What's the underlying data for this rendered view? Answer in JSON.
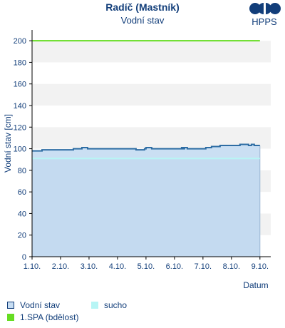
{
  "header": {
    "title": "Radíč (Mastník)",
    "subtitle": "Vodní stav",
    "logo_text": "HPPS"
  },
  "colors": {
    "axis_text": "#123e7a",
    "band": "#f2f2f2",
    "water_line": "#2e6da4",
    "water_fill": "#c7ddf2",
    "sucho": "#b7f5f5",
    "spa": "#66dd22"
  },
  "chart_data": {
    "type": "area",
    "title": "Radíč (Mastník)",
    "subtitle": "Vodní stav",
    "xlabel": "Datum",
    "ylabel": "Vodní stav [cm]",
    "ylim": [
      0,
      210
    ],
    "xlim": [
      0,
      8.38
    ],
    "yticks": [
      0,
      20,
      40,
      60,
      80,
      100,
      120,
      140,
      160,
      180,
      200
    ],
    "xticks": [
      "1.10.",
      "2.10.",
      "3.10.",
      "4.10.",
      "5.10.",
      "6.10.",
      "7.10.",
      "8.10.",
      "9.10."
    ],
    "grid": "horizontal bands",
    "series": [
      {
        "name": "Vodní stav",
        "step_points": [
          [
            0.0,
            98
          ],
          [
            0.35,
            99
          ],
          [
            1.45,
            100
          ],
          [
            1.75,
            101
          ],
          [
            1.95,
            100
          ],
          [
            3.2,
            100
          ],
          [
            3.65,
            99
          ],
          [
            3.95,
            100
          ],
          [
            4.0,
            101
          ],
          [
            4.2,
            100
          ],
          [
            5.25,
            101
          ],
          [
            5.3,
            100
          ],
          [
            5.35,
            101
          ],
          [
            5.45,
            100
          ],
          [
            6.1,
            101
          ],
          [
            6.3,
            102
          ],
          [
            6.6,
            103
          ],
          [
            7.3,
            104
          ],
          [
            7.6,
            103
          ],
          [
            7.7,
            104
          ],
          [
            7.8,
            103
          ],
          [
            8.0,
            103
          ]
        ]
      },
      {
        "name": "sucho",
        "value": 91,
        "x_range": [
          0.0,
          8.0
        ]
      },
      {
        "name": "1.SPA (bdělost)",
        "value": 200,
        "x_range": [
          0.0,
          8.0
        ]
      }
    ],
    "legend": {
      "placement": "bottom",
      "entries": [
        "Vodní stav",
        "sucho",
        "1.SPA (bdělost)"
      ]
    }
  }
}
